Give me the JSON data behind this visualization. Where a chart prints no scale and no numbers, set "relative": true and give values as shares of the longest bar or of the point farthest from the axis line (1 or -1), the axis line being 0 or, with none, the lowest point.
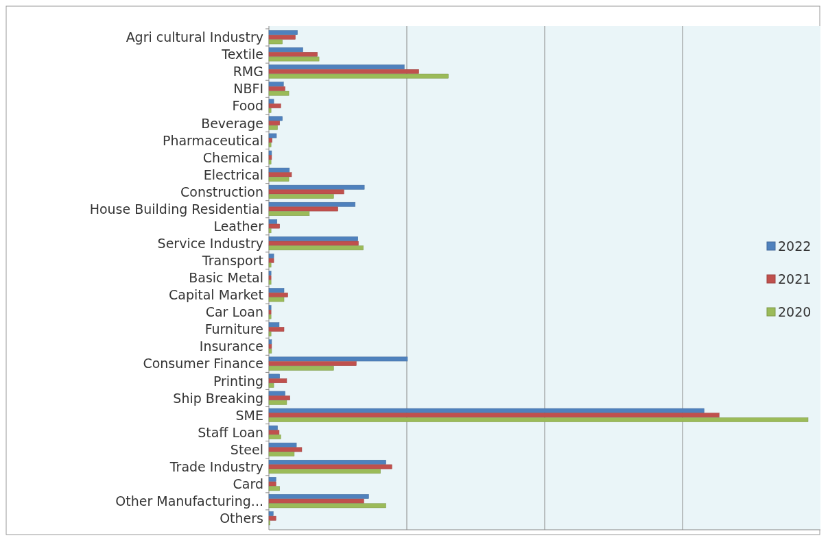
{
  "chart_data": {
    "type": "bar",
    "orientation": "horizontal",
    "relative": true,
    "grid": "x",
    "legend": "right",
    "categories": [
      "Agri cultural Industry",
      "Textile",
      "RMG",
      "NBFI",
      "Food",
      "Beverage",
      "Pharmaceutical",
      "Chemical",
      "Electrical",
      "Construction",
      "House Building Residential",
      "Leather",
      "Service Industry",
      "Transport",
      "Basic Metal",
      "Capital Market",
      "Car Loan",
      "Furniture",
      "Insurance",
      "Consumer Finance",
      "Printing",
      "Ship Breaking",
      "SME",
      "Staff Loan",
      "Steel",
      "Trade Industry",
      "Card",
      "Other Manufacturing...",
      "Others"
    ],
    "series": [
      {
        "name": "2022",
        "color": "#4f81bd",
        "values": [
          0.053,
          0.063,
          0.251,
          0.027,
          0.009,
          0.025,
          0.014,
          0.005,
          0.038,
          0.177,
          0.16,
          0.015,
          0.165,
          0.009,
          0.004,
          0.028,
          0.004,
          0.019,
          0.005,
          0.257,
          0.02,
          0.03,
          0.807,
          0.016,
          0.051,
          0.217,
          0.013,
          0.185,
          0.008
        ]
      },
      {
        "name": "2021",
        "color": "#c0504d",
        "values": [
          0.049,
          0.09,
          0.278,
          0.03,
          0.022,
          0.02,
          0.006,
          0.005,
          0.042,
          0.139,
          0.128,
          0.02,
          0.166,
          0.009,
          0.004,
          0.035,
          0.004,
          0.028,
          0.005,
          0.162,
          0.033,
          0.039,
          0.835,
          0.019,
          0.061,
          0.228,
          0.013,
          0.176,
          0.013
        ]
      },
      {
        "name": "2020",
        "color": "#9bbb59",
        "values": [
          0.025,
          0.093,
          0.333,
          0.037,
          0.004,
          0.016,
          0.004,
          0.004,
          0.037,
          0.12,
          0.075,
          0.004,
          0.175,
          0.004,
          0.004,
          0.028,
          0.004,
          0.004,
          0.005,
          0.12,
          0.009,
          0.033,
          1,
          0.022,
          0.047,
          0.207,
          0.02,
          0.217,
          0.002
        ]
      }
    ]
  }
}
